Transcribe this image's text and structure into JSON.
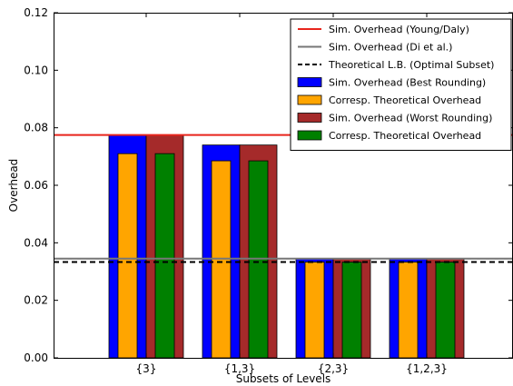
{
  "chart_data": {
    "type": "bar",
    "xlabel": "Subsets of Levels",
    "ylabel": "Overhead",
    "ylim": [
      0,
      0.12
    ],
    "yticks": [
      "0.00",
      "0.02",
      "0.04",
      "0.06",
      "0.08",
      "0.10",
      "0.12"
    ],
    "ytick_values": [
      0,
      0.02,
      0.04,
      0.06,
      0.08,
      0.1,
      0.12
    ],
    "categories": [
      "{3}",
      "{1,3}",
      "{2,3}",
      "{1,2,3}"
    ],
    "grid": false,
    "legend_position": "top-right",
    "reference_lines": [
      {
        "name": "Sim. Overhead (Young/Daly)",
        "value": 0.0775,
        "color": "#e8251c",
        "style": "solid"
      },
      {
        "name": "Sim. Overhead (Di et al.)",
        "value": 0.0345,
        "color": "#777777",
        "style": "solid"
      },
      {
        "name": "Theoretical L.B. (Optimal Subset)",
        "value": 0.0333,
        "color": "#000000",
        "style": "dashed"
      }
    ],
    "series": [
      {
        "name": "Sim. Overhead (Best Rounding)",
        "values": [
          0.0775,
          0.074,
          0.0345,
          0.0345
        ],
        "color": "#0000ff",
        "group": "best",
        "layer": "outer"
      },
      {
        "name": "Corresp. Theoretical Overhead",
        "values": [
          0.071,
          0.0685,
          0.0333,
          0.0333
        ],
        "color": "#ffa500",
        "group": "best",
        "layer": "inner"
      },
      {
        "name": "Sim. Overhead (Worst Rounding)",
        "values": [
          0.0775,
          0.074,
          0.0345,
          0.0345
        ],
        "color": "#a52a2a",
        "group": "worst",
        "layer": "outer"
      },
      {
        "name": "Corresp. Theoretical Overhead",
        "values": [
          0.071,
          0.0685,
          0.0333,
          0.0333
        ],
        "color": "#008000",
        "group": "worst",
        "layer": "inner"
      }
    ]
  }
}
